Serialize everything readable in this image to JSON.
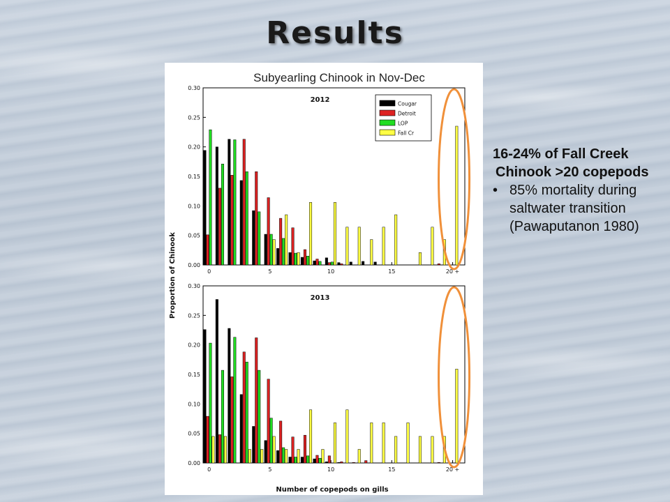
{
  "slide": {
    "title": "Results",
    "notes": {
      "line1": "16-24% of Fall Creek",
      "line2": "Chinook >20 copepods",
      "bullet": "85% mortality during saltwater transition (Pawaputanon 1980)"
    }
  },
  "figure": {
    "header": "Subyearling Chinook in Nov-Dec",
    "ylabel": "Proportion of Chinook",
    "xlabel": "Number of copepods on gills",
    "x_ticks": [
      "0",
      "5",
      "10",
      "15",
      "20 +"
    ],
    "y_ticks": [
      "0.00",
      "0.05",
      "0.10",
      "0.15",
      "0.20",
      "0.25",
      "0.30"
    ],
    "highlight_color": "#f0903a"
  },
  "chart_data": [
    {
      "type": "bar",
      "title": "2012",
      "ylim": [
        0,
        0.3
      ],
      "categories": [
        0,
        1,
        2,
        3,
        4,
        5,
        6,
        7,
        8,
        9,
        10,
        11,
        12,
        13,
        14,
        15,
        16,
        17,
        18,
        19,
        20
      ],
      "legend": "top-right",
      "series": [
        {
          "name": "Cougar",
          "color": "#000000",
          "values": [
            0.194,
            0.2,
            0.213,
            0.143,
            0.092,
            0.052,
            0.028,
            0.021,
            0.013,
            0.007,
            0.012,
            0.004,
            0.005,
            0.006,
            0.005,
            0,
            0,
            0,
            0,
            0,
            0
          ]
        },
        {
          "name": "Detroit",
          "color": "#dd2222",
          "values": [
            0.051,
            0.13,
            0.152,
            0.213,
            0.158,
            0.114,
            0.079,
            0.063,
            0.026,
            0.01,
            0.004,
            0.002,
            0,
            0,
            0,
            0,
            0,
            0,
            0,
            0.002,
            0
          ]
        },
        {
          "name": "LOP",
          "color": "#22dd22",
          "values": [
            0.229,
            0.171,
            0.212,
            0.158,
            0.09,
            0.052,
            0.045,
            0.02,
            0.015,
            0.006,
            0.005,
            0,
            0,
            0,
            0,
            0,
            0,
            0,
            0,
            0,
            0
          ]
        },
        {
          "name": "Fall Cr",
          "color": "#ffff44",
          "values": [
            0,
            0,
            0,
            0,
            0,
            0.043,
            0.085,
            0.021,
            0.106,
            0,
            0.106,
            0.064,
            0.064,
            0.043,
            0.064,
            0.085,
            0,
            0.021,
            0.064,
            0.043,
            0.235
          ]
        }
      ]
    },
    {
      "type": "bar",
      "title": "2013",
      "ylim": [
        0,
        0.3
      ],
      "categories": [
        0,
        1,
        2,
        3,
        4,
        5,
        6,
        7,
        8,
        9,
        10,
        11,
        12,
        13,
        14,
        15,
        16,
        17,
        18,
        19,
        20
      ],
      "series": [
        {
          "name": "Cougar",
          "color": "#000000",
          "values": [
            0.226,
            0.277,
            0.228,
            0.116,
            0.062,
            0.038,
            0.021,
            0.01,
            0.01,
            0.007,
            0.002,
            0.001,
            0,
            0,
            0,
            0,
            0,
            0,
            0,
            0,
            0
          ]
        },
        {
          "name": "Detroit",
          "color": "#dd2222",
          "values": [
            0.079,
            0.048,
            0.146,
            0.188,
            0.212,
            0.142,
            0.071,
            0.044,
            0.047,
            0.013,
            0.012,
            0.002,
            0.001,
            0.004,
            0,
            0,
            0,
            0,
            0,
            0.001,
            0
          ]
        },
        {
          "name": "LOP",
          "color": "#22dd22",
          "values": [
            0.203,
            0.157,
            0.213,
            0.171,
            0.157,
            0.076,
            0.026,
            0.01,
            0.012,
            0.008,
            0,
            0,
            0,
            0,
            0,
            0,
            0,
            0,
            0,
            0,
            0
          ]
        },
        {
          "name": "Fall Cr",
          "color": "#ffff44",
          "values": [
            0.045,
            0.045,
            0,
            0.023,
            0.023,
            0.045,
            0.023,
            0.023,
            0.09,
            0.023,
            0.068,
            0.09,
            0.023,
            0.068,
            0.068,
            0.045,
            0.068,
            0.045,
            0.045,
            0.045,
            0.159
          ]
        }
      ]
    }
  ]
}
